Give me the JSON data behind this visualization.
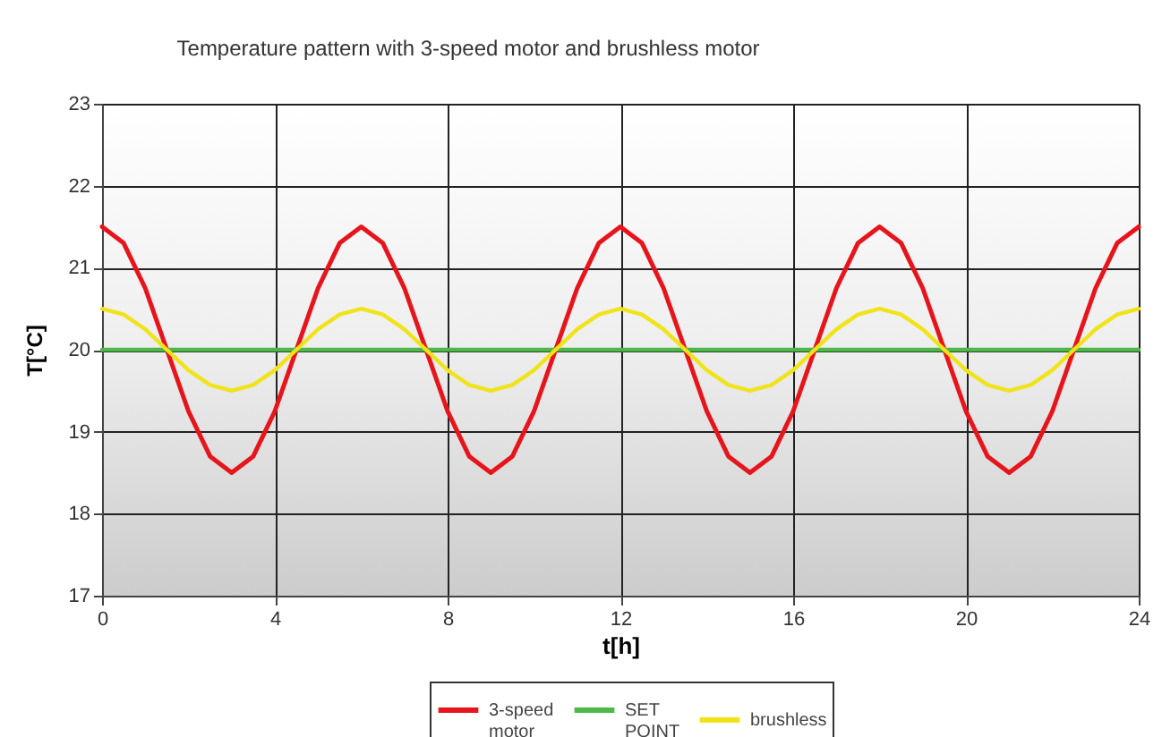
{
  "chart_data": {
    "type": "line",
    "title": "Temperature pattern with 3-speed motor and brushless motor",
    "xlabel": "t[h]",
    "ylabel": "T[°C]",
    "x": [
      0,
      0.5,
      1,
      1.5,
      2,
      2.5,
      3,
      3.5,
      4,
      4.5,
      5,
      5.5,
      6,
      6.5,
      7,
      7.5,
      8,
      8.5,
      9,
      9.5,
      10,
      10.5,
      11,
      11.5,
      12,
      12.5,
      13,
      13.5,
      14,
      14.5,
      15,
      15.5,
      16,
      16.5,
      17,
      17.5,
      18,
      18.5,
      19,
      19.5,
      20,
      20.5,
      21,
      21.5,
      22,
      22.5,
      23,
      23.5,
      24
    ],
    "series": [
      {
        "name": "3-speed motor",
        "color": "#e8141b",
        "values": [
          21.5,
          21.3,
          20.75,
          20,
          19.25,
          18.7,
          18.5,
          18.7,
          19.25,
          20,
          20.75,
          21.3,
          21.5,
          21.3,
          20.75,
          20,
          19.25,
          18.7,
          18.5,
          18.7,
          19.25,
          20,
          20.75,
          21.3,
          21.5,
          21.3,
          20.75,
          20,
          19.25,
          18.7,
          18.5,
          18.7,
          19.25,
          20,
          20.75,
          21.3,
          21.5,
          21.3,
          20.75,
          20,
          19.25,
          18.7,
          18.5,
          18.7,
          19.25,
          20,
          20.75,
          21.3,
          21.5
        ]
      },
      {
        "name": "SET POINT",
        "color": "#4cb848",
        "x": [
          0,
          24
        ],
        "values": [
          20,
          20
        ]
      },
      {
        "name": "brushless",
        "color": "#f0e31a",
        "values": [
          20.5,
          20.43,
          20.25,
          20,
          19.75,
          19.57,
          19.5,
          19.57,
          19.75,
          20,
          20.25,
          20.43,
          20.5,
          20.43,
          20.25,
          20,
          19.75,
          19.57,
          19.5,
          19.57,
          19.75,
          20,
          20.25,
          20.43,
          20.5,
          20.43,
          20.25,
          20,
          19.75,
          19.57,
          19.5,
          19.57,
          19.75,
          20,
          20.25,
          20.43,
          20.5,
          20.43,
          20.25,
          20,
          19.75,
          19.57,
          19.5,
          19.57,
          19.75,
          20,
          20.25,
          20.43,
          20.5
        ]
      }
    ],
    "xlim": [
      0,
      24
    ],
    "xticks": [
      0,
      4,
      8,
      12,
      16,
      20,
      24
    ],
    "ylim": [
      17,
      23
    ],
    "yticks": [
      17,
      18,
      19,
      20,
      21,
      22,
      23
    ],
    "grid": true,
    "legend": "bottom",
    "marker": "none",
    "line_style": "solid"
  }
}
